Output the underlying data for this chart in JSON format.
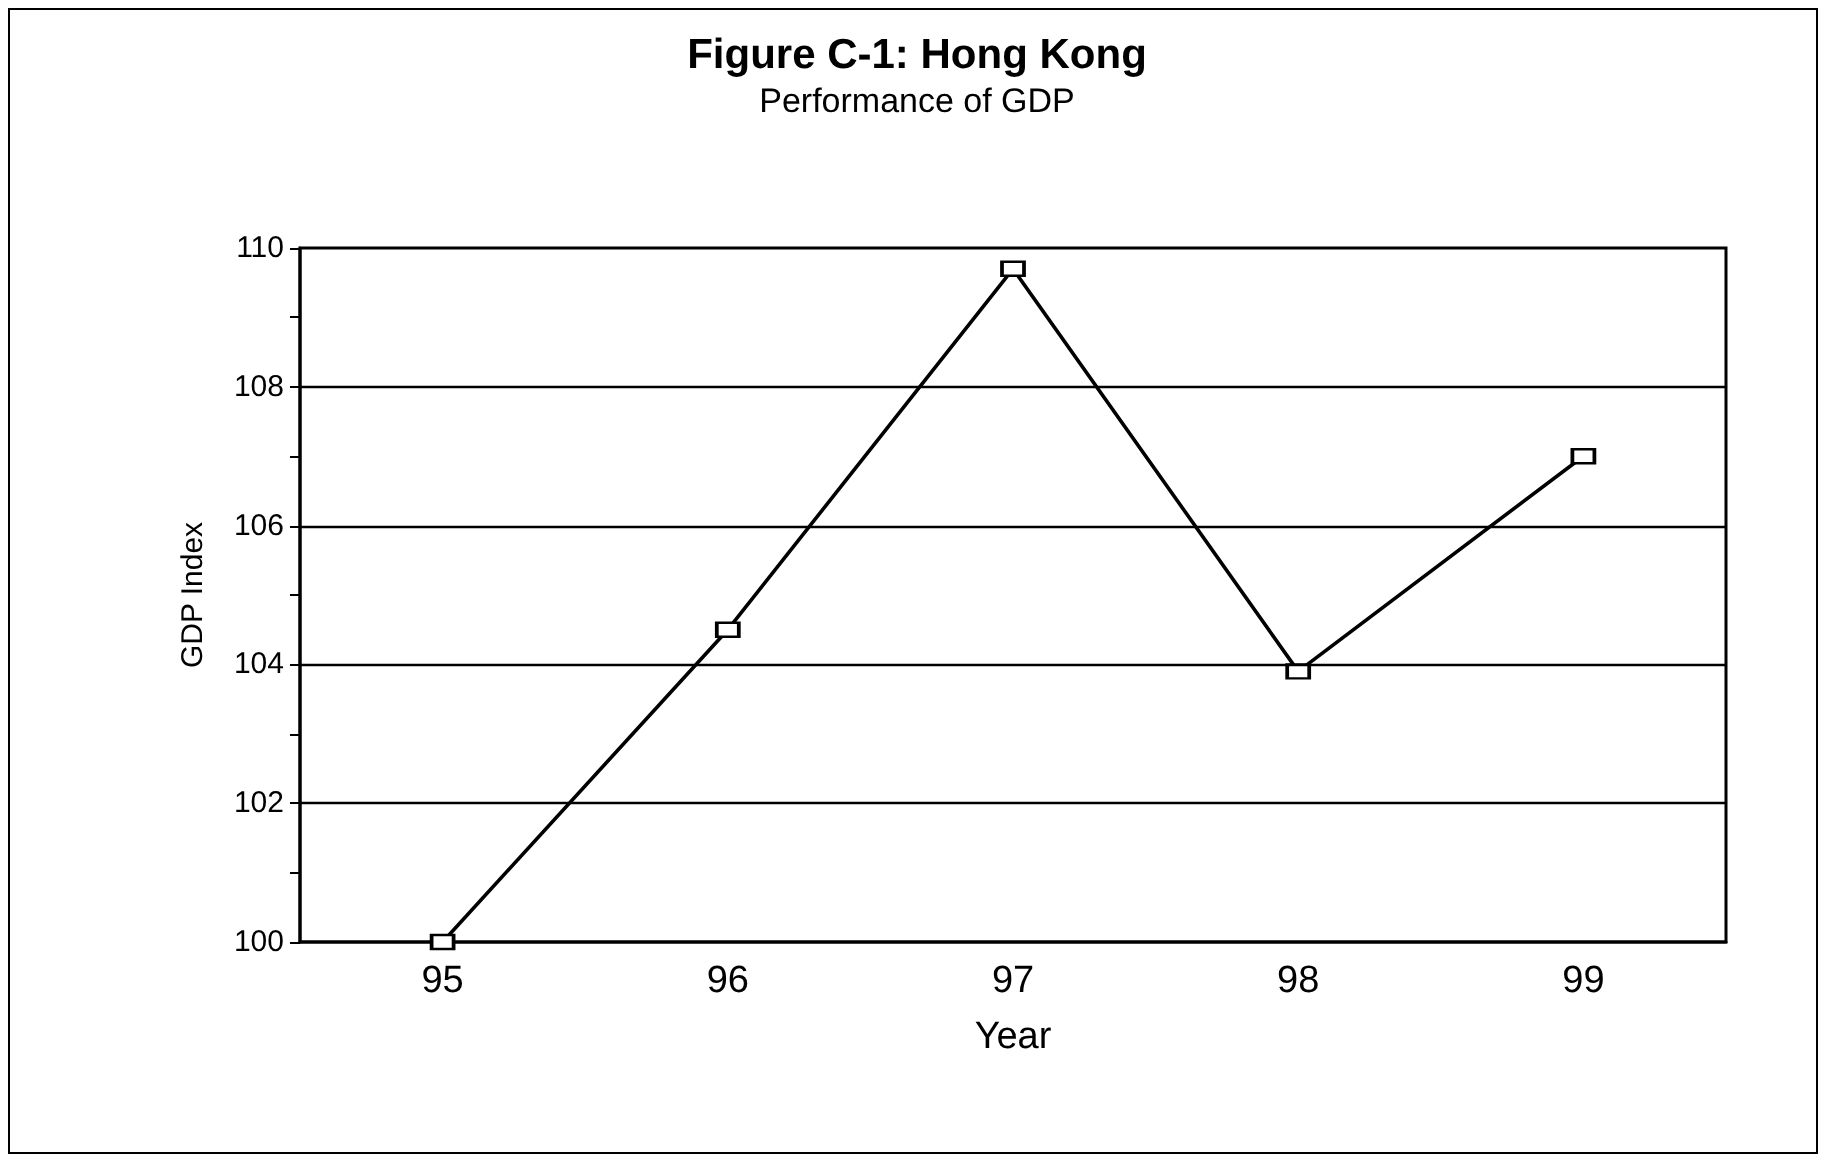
{
  "chart_data": {
    "type": "line",
    "title": "Figure C-1: Hong Kong",
    "subtitle": "Performance of GDP",
    "xlabel": "Year",
    "ylabel": "GDP Index",
    "categories": [
      "95",
      "96",
      "97",
      "98",
      "99"
    ],
    "series": [
      {
        "color": "#000000",
        "values": [
          100,
          104.5,
          109.7,
          103.9,
          107.0
        ]
      }
    ],
    "ylim": [
      100,
      110
    ],
    "yticks": [
      100,
      {
        "value": 101,
        "label": null
      },
      102,
      {
        "value": 103,
        "label": null
      },
      104,
      {
        "value": 105,
        "label": null
      },
      106,
      {
        "value": 107,
        "label": null
      },
      108,
      {
        "value": 109,
        "label": null
      },
      110
    ],
    "grid": "y",
    "marker": "square",
    "line_style": "solid"
  }
}
